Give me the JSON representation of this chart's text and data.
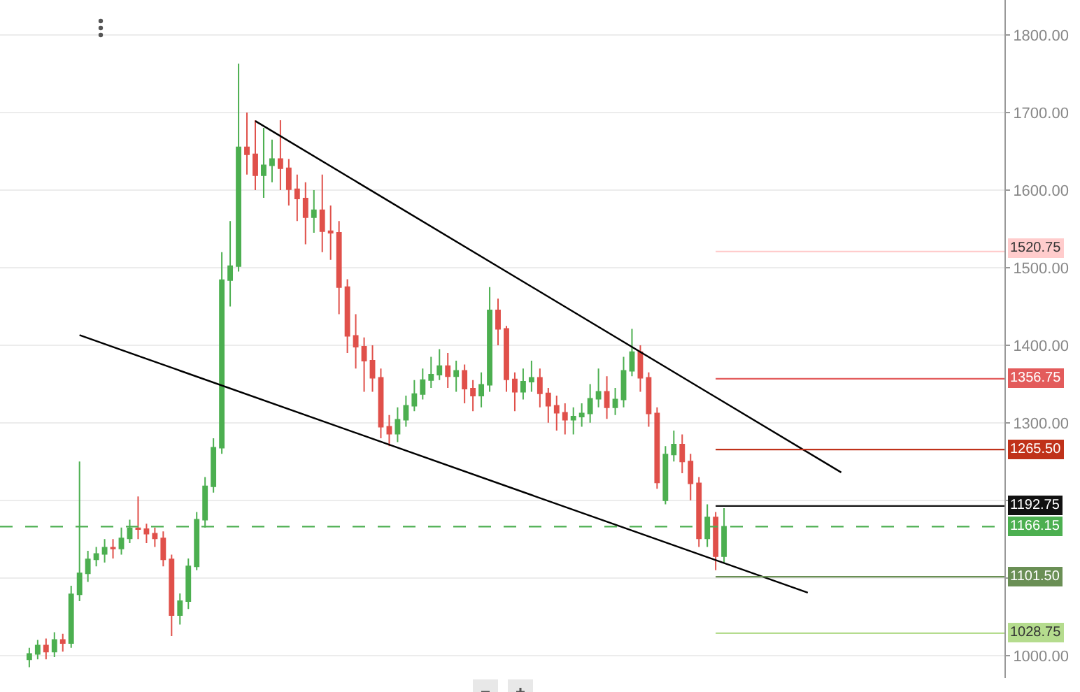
{
  "chart_data": {
    "type": "candlestick",
    "categories": [
      null,
      null,
      null,
      null,
      null,
      null,
      null,
      null,
      null,
      null,
      null,
      null,
      null,
      null,
      null,
      null,
      null,
      null,
      null,
      null,
      null,
      null,
      null,
      null,
      null,
      null,
      null,
      null,
      null,
      null,
      null,
      null,
      null,
      null,
      null,
      null,
      null,
      null,
      null,
      null,
      null,
      null,
      null,
      null,
      null,
      null,
      null,
      null,
      null,
      null,
      null,
      null,
      null,
      null,
      null,
      null,
      null,
      null,
      null,
      null,
      null,
      null,
      null,
      null,
      null,
      null,
      null,
      null,
      null,
      null,
      null,
      null,
      null,
      null,
      null,
      null,
      null,
      null,
      null,
      null,
      null,
      null,
      null,
      null,
      null,
      null,
      null,
      null,
      null,
      null,
      null,
      null,
      null,
      null,
      null,
      null,
      null,
      null,
      null,
      null,
      null,
      null,
      null,
      null,
      null,
      null,
      null,
      null,
      null,
      null,
      null,
      null,
      null,
      null,
      null,
      null,
      null,
      null,
      null,
      null
    ],
    "ohlc": [
      null,
      null,
      null,
      [
        995,
        1010,
        985,
        1002
      ],
      [
        1002,
        1020,
        995,
        1013
      ],
      [
        1013,
        1022,
        995,
        1005
      ],
      [
        1005,
        1030,
        998,
        1020
      ],
      [
        1020,
        1028,
        1005,
        1016
      ],
      [
        1016,
        1090,
        1010,
        1079
      ],
      [
        1079,
        1250,
        1070,
        1106
      ],
      [
        1106,
        1135,
        1095,
        1124
      ],
      [
        1124,
        1140,
        1115,
        1131
      ],
      [
        1131,
        1150,
        1120,
        1139
      ],
      [
        1139,
        1150,
        1125,
        1138
      ],
      [
        1138,
        1165,
        1130,
        1151
      ],
      [
        1151,
        1175,
        1145,
        1164
      ],
      [
        1164,
        1205,
        1150,
        1163
      ],
      [
        1163,
        1170,
        1145,
        1157
      ],
      [
        1157,
        1165,
        1140,
        1151
      ],
      [
        1151,
        1160,
        1115,
        1124
      ],
      [
        1124,
        1130,
        1025,
        1052
      ],
      [
        1052,
        1080,
        1040,
        1070
      ],
      [
        1070,
        1125,
        1060,
        1115
      ],
      [
        1115,
        1185,
        1110,
        1175
      ],
      [
        1175,
        1230,
        1165,
        1218
      ],
      [
        1218,
        1280,
        1210,
        1268
      ],
      [
        1268,
        1520,
        1260,
        1484
      ],
      [
        1484,
        1560,
        1450,
        1502
      ],
      [
        1502,
        1763,
        1495,
        1655
      ],
      [
        1655,
        1700,
        1620,
        1646
      ],
      [
        1646,
        1690,
        1600,
        1619
      ],
      [
        1619,
        1680,
        1590,
        1632
      ],
      [
        1632,
        1665,
        1610,
        1640
      ],
      [
        1640,
        1690,
        1600,
        1628
      ],
      [
        1628,
        1640,
        1580,
        1601
      ],
      [
        1601,
        1620,
        1560,
        1589
      ],
      [
        1589,
        1610,
        1530,
        1565
      ],
      [
        1565,
        1600,
        1545,
        1574
      ],
      [
        1574,
        1620,
        1520,
        1547
      ],
      [
        1547,
        1580,
        1510,
        1545
      ],
      [
        1545,
        1560,
        1440,
        1475
      ],
      [
        1475,
        1485,
        1390,
        1412
      ],
      [
        1412,
        1440,
        1370,
        1398
      ],
      [
        1398,
        1410,
        1340,
        1380
      ],
      [
        1380,
        1400,
        1340,
        1358
      ],
      [
        1358,
        1370,
        1280,
        1295
      ],
      [
        1295,
        1310,
        1270,
        1286
      ],
      [
        1286,
        1320,
        1275,
        1304
      ],
      [
        1304,
        1335,
        1295,
        1322
      ],
      [
        1322,
        1355,
        1315,
        1337
      ],
      [
        1337,
        1370,
        1330,
        1355
      ],
      [
        1355,
        1385,
        1345,
        1362
      ],
      [
        1362,
        1395,
        1355,
        1373
      ],
      [
        1373,
        1390,
        1345,
        1360
      ],
      [
        1360,
        1380,
        1340,
        1367
      ],
      [
        1367,
        1375,
        1325,
        1344
      ],
      [
        1344,
        1355,
        1315,
        1335
      ],
      [
        1335,
        1365,
        1320,
        1349
      ],
      [
        1349,
        1475,
        1340,
        1445
      ],
      [
        1445,
        1460,
        1400,
        1421
      ],
      [
        1421,
        1425,
        1340,
        1356
      ],
      [
        1356,
        1365,
        1315,
        1340
      ],
      [
        1340,
        1370,
        1330,
        1353
      ],
      [
        1353,
        1380,
        1340,
        1358
      ],
      [
        1358,
        1370,
        1320,
        1338
      ],
      [
        1338,
        1345,
        1300,
        1322
      ],
      [
        1322,
        1335,
        1290,
        1313
      ],
      [
        1313,
        1325,
        1285,
        1304
      ],
      [
        1304,
        1320,
        1285,
        1308
      ],
      [
        1308,
        1325,
        1295,
        1312
      ],
      [
        1312,
        1350,
        1300,
        1331
      ],
      [
        1331,
        1370,
        1320,
        1340
      ],
      [
        1340,
        1360,
        1305,
        1320
      ],
      [
        1320,
        1345,
        1310,
        1330
      ],
      [
        1330,
        1385,
        1320,
        1367
      ],
      [
        1367,
        1421,
        1360,
        1391
      ],
      [
        1391,
        1400,
        1340,
        1358
      ],
      [
        1358,
        1365,
        1295,
        1312
      ],
      [
        1312,
        1320,
        1215,
        1223
      ],
      [
        1200,
        1270,
        1195,
        1259
      ],
      [
        1259,
        1290,
        1250,
        1272
      ],
      [
        1272,
        1285,
        1235,
        1250
      ],
      [
        1250,
        1260,
        1200,
        1222
      ],
      [
        1222,
        1230,
        1140,
        1151
      ],
      [
        1151,
        1195,
        1140,
        1178
      ],
      [
        1178,
        1185,
        1110,
        1128
      ],
      [
        1128,
        1190,
        1120,
        1166
      ],
      null,
      null,
      null,
      null,
      null,
      null,
      null,
      null,
      null,
      null,
      null,
      null,
      null,
      null,
      null,
      null,
      null,
      null,
      null,
      null,
      null,
      null,
      null,
      null,
      null,
      null,
      null,
      null,
      null,
      null,
      null,
      null,
      null
    ],
    "series": [
      {
        "type": "line",
        "color": "#000000",
        "values": [
          null,
          null,
          null,
          null,
          null,
          null,
          null,
          null,
          null,
          null,
          null,
          null,
          null,
          null,
          null,
          null,
          null,
          null,
          null,
          null,
          null,
          null,
          null,
          null,
          null,
          null,
          null,
          null,
          null,
          null,
          1689,
          null,
          null,
          null,
          null,
          null,
          null,
          null,
          null,
          null,
          null,
          null,
          null,
          null,
          null,
          null,
          null,
          null,
          null,
          null,
          null,
          null,
          null,
          null,
          null,
          null,
          null,
          null,
          null,
          null,
          null,
          null,
          null,
          null,
          null,
          null,
          null,
          null,
          null,
          null,
          null,
          null,
          null,
          null,
          null,
          null,
          null,
          null,
          null,
          null,
          null,
          null,
          null,
          null,
          null,
          null,
          null,
          null,
          null,
          null,
          null,
          null,
          null,
          null,
          null,
          null,
          null,
          null,
          null,
          null,
          1236,
          null,
          null,
          null,
          null,
          null,
          null,
          null,
          null,
          null,
          null,
          null,
          null,
          null,
          null,
          null,
          null,
          null,
          null,
          null
        ]
      },
      {
        "type": "line",
        "color": "#000000",
        "values": [
          null,
          null,
          null,
          null,
          null,
          null,
          null,
          null,
          null,
          1413,
          null,
          null,
          null,
          null,
          null,
          null,
          null,
          null,
          null,
          null,
          null,
          null,
          null,
          null,
          null,
          null,
          null,
          null,
          null,
          null,
          null,
          null,
          null,
          null,
          null,
          null,
          null,
          null,
          null,
          null,
          null,
          null,
          null,
          null,
          null,
          null,
          null,
          null,
          null,
          null,
          null,
          null,
          null,
          null,
          null,
          null,
          null,
          null,
          null,
          null,
          null,
          null,
          null,
          null,
          null,
          null,
          null,
          null,
          null,
          null,
          null,
          null,
          null,
          null,
          null,
          null,
          null,
          null,
          null,
          null,
          null,
          null,
          null,
          null,
          null,
          null,
          null,
          null,
          null,
          null,
          null,
          null,
          null,
          null,
          null,
          null,
          1081,
          null,
          null,
          null,
          null,
          null,
          null,
          null,
          null,
          null,
          null,
          null,
          null,
          null,
          null,
          null,
          null,
          null,
          null,
          null,
          null,
          null,
          null,
          null
        ]
      }
    ],
    "ylim": [
      971,
      1845
    ],
    "yticks": [
      {
        "value": 1000,
        "label": "1000.00"
      },
      {
        "value": 1100,
        "label": null
      },
      {
        "value": 1200,
        "label": null
      },
      {
        "value": 1300,
        "label": "1300.00"
      },
      {
        "value": 1400,
        "label": "1400.00"
      },
      {
        "value": 1500,
        "label": "1500.00"
      },
      {
        "value": 1600,
        "label": "1600.00"
      },
      {
        "value": 1700,
        "label": "1700.00"
      },
      {
        "value": 1800,
        "label": "1800.00"
      }
    ],
    "ref_lines": [
      {
        "axis": "y",
        "value": 1520.75,
        "label": "1520.75",
        "color": "#ffcccc",
        "line_style": "solid"
      },
      {
        "axis": "y",
        "value": 1356.75,
        "label": "1356.75",
        "color": "#e35b5b",
        "line_style": "solid"
      },
      {
        "axis": "y",
        "value": 1265.5,
        "label": "1265.50",
        "color": "#c0321a",
        "line_style": "solid"
      },
      {
        "axis": "y",
        "value": 1192.75,
        "label": "1192.75",
        "color": "#111111",
        "line_style": "solid"
      },
      {
        "axis": "y",
        "value": 1166.15,
        "label": "1166.15",
        "color": "#4caf50",
        "line_style": "dashed"
      },
      {
        "axis": "y",
        "value": 1101.5,
        "label": "1101.50",
        "color": "#6a8f55",
        "line_style": "solid"
      },
      {
        "axis": "y",
        "value": 1028.75,
        "label": "1028.75",
        "color": "#b5dc8e",
        "line_style": "solid"
      }
    ],
    "grid": "y",
    "tick_labels": "y"
  }
}
